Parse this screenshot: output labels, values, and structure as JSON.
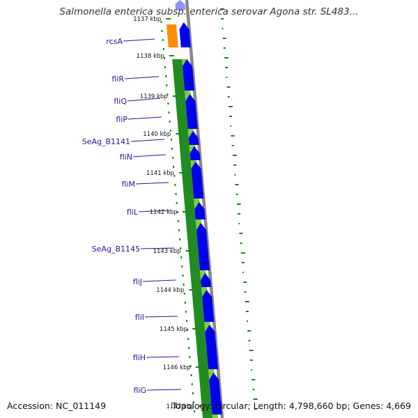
{
  "title": "Salmonella enterica subsp. enterica serovar Agona str. SL483...",
  "footer": {
    "accession": "Accession: NC_011149",
    "stats": "Topology: circular; Length: 4,798,660 bp; Genes: 4,669"
  },
  "colors": {
    "forward_cds": "#0000ee",
    "orange_feature": "#ff8c00",
    "conservation_dark": "#228b22",
    "conservation_light": "#adff2f",
    "backbone": "#888888",
    "label": "#1a1a9a",
    "tick": "#118811"
  },
  "ticks": [
    "1137 kbp",
    "1138 kbp",
    "1139 kbp",
    "1140 kbp",
    "1141 kbp",
    "1142 kbp",
    "1143 kbp",
    "1144 kbp",
    "1145 kbp",
    "1146 kbp",
    "1147 kbp"
  ],
  "genes": [
    "rcsA",
    "fliR",
    "fliQ",
    "fliP",
    "SeAg_B1141",
    "fliN",
    "fliM",
    "fliL",
    "SeAg_B1145",
    "fliJ",
    "fliI",
    "fliH",
    "fliG"
  ]
}
